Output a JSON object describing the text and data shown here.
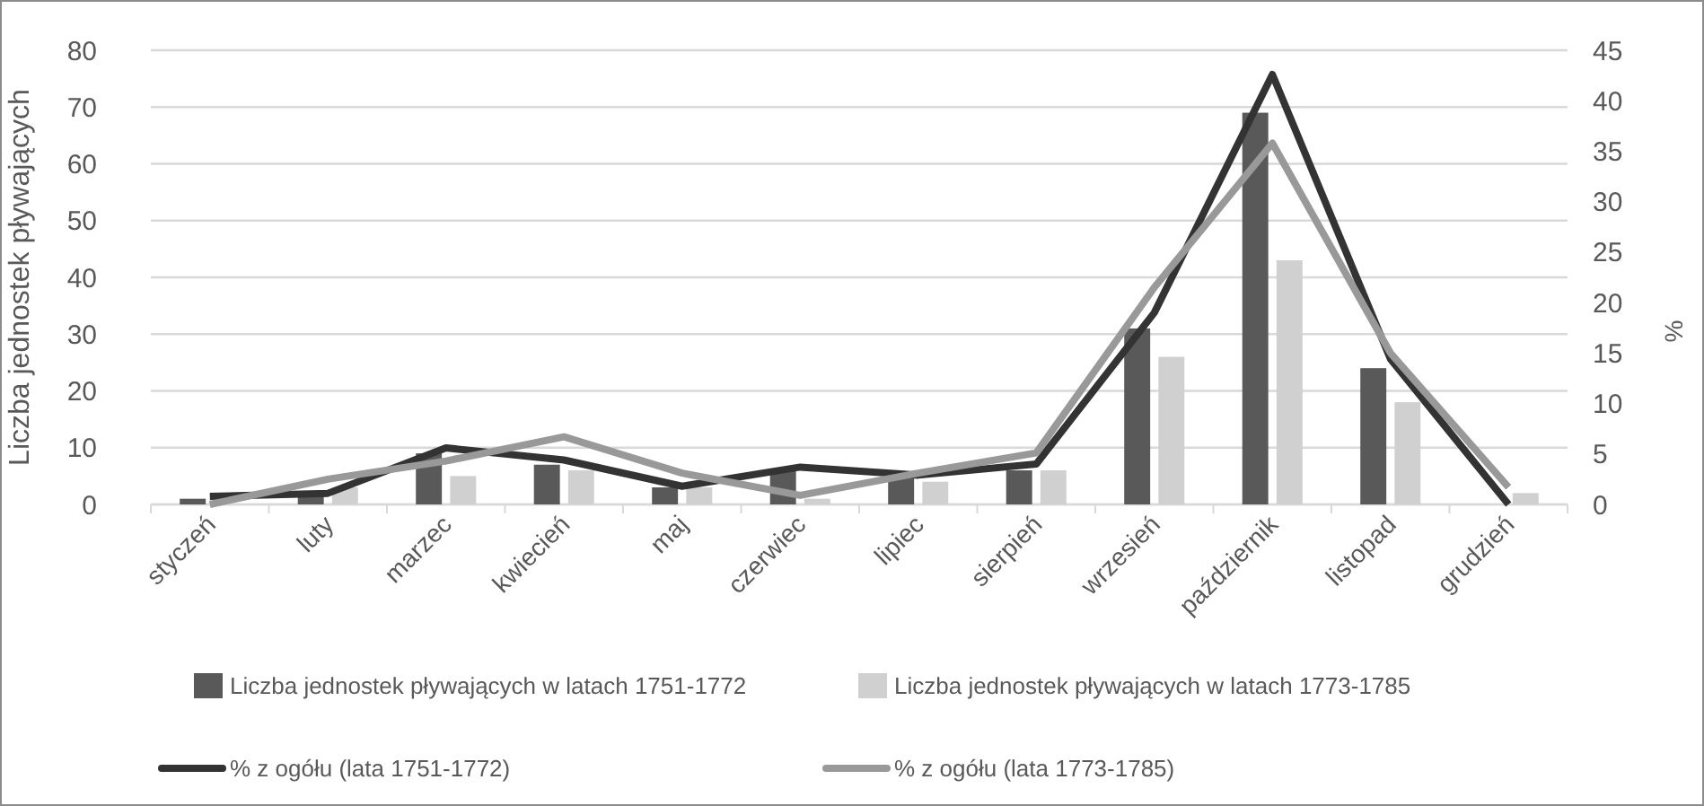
{
  "chart_data": {
    "type": "bar",
    "ylabel": "Liczba jednostek pływających",
    "y2label": "%",
    "categories": [
      "styczeń",
      "luty",
      "marzec",
      "kwiecień",
      "maj",
      "czerwiec",
      "lipiec",
      "sierpień",
      "wrzesień",
      "październik",
      "listopad",
      "grudzień"
    ],
    "series": [
      {
        "name": "Liczba jednostek pływających w latach 1751-1772",
        "color": "#595959",
        "values": [
          1,
          2,
          9,
          7,
          3,
          6,
          5,
          6,
          31,
          69,
          24,
          0
        ]
      },
      {
        "name": "Liczba jednostek pływających w latach 1773-1785",
        "color": "#d0d0d0",
        "values": [
          0,
          3,
          5,
          6,
          3,
          1,
          4,
          6,
          26,
          43,
          18,
          2
        ]
      },
      {
        "name": "% z ogółu (lata 1751-1772)",
        "type": "line",
        "axis": "y2",
        "color": "#333333",
        "values": [
          0.8,
          1.1,
          5.6,
          4.4,
          1.8,
          3.7,
          2.9,
          4.0,
          19.0,
          42.6,
          14.4,
          0
        ]
      },
      {
        "name": "% z ogółu (lata 1773-1785)",
        "type": "line",
        "axis": "y2",
        "color": "#999999",
        "values": [
          0,
          2.5,
          4.3,
          6.7,
          3.1,
          0.9,
          3.1,
          5.1,
          21.5,
          35.8,
          15.0,
          1.7
        ]
      }
    ],
    "ylim": [
      0,
      80
    ],
    "yticks": [
      0,
      10,
      20,
      30,
      40,
      50,
      60,
      70,
      80
    ],
    "y2lim": [
      0,
      45
    ],
    "y2ticks": [
      0,
      5,
      10,
      15,
      20,
      25,
      30,
      35,
      40,
      45
    ],
    "grid": "y",
    "legend": "bottom",
    "marker": "none",
    "line_style": "solid"
  }
}
